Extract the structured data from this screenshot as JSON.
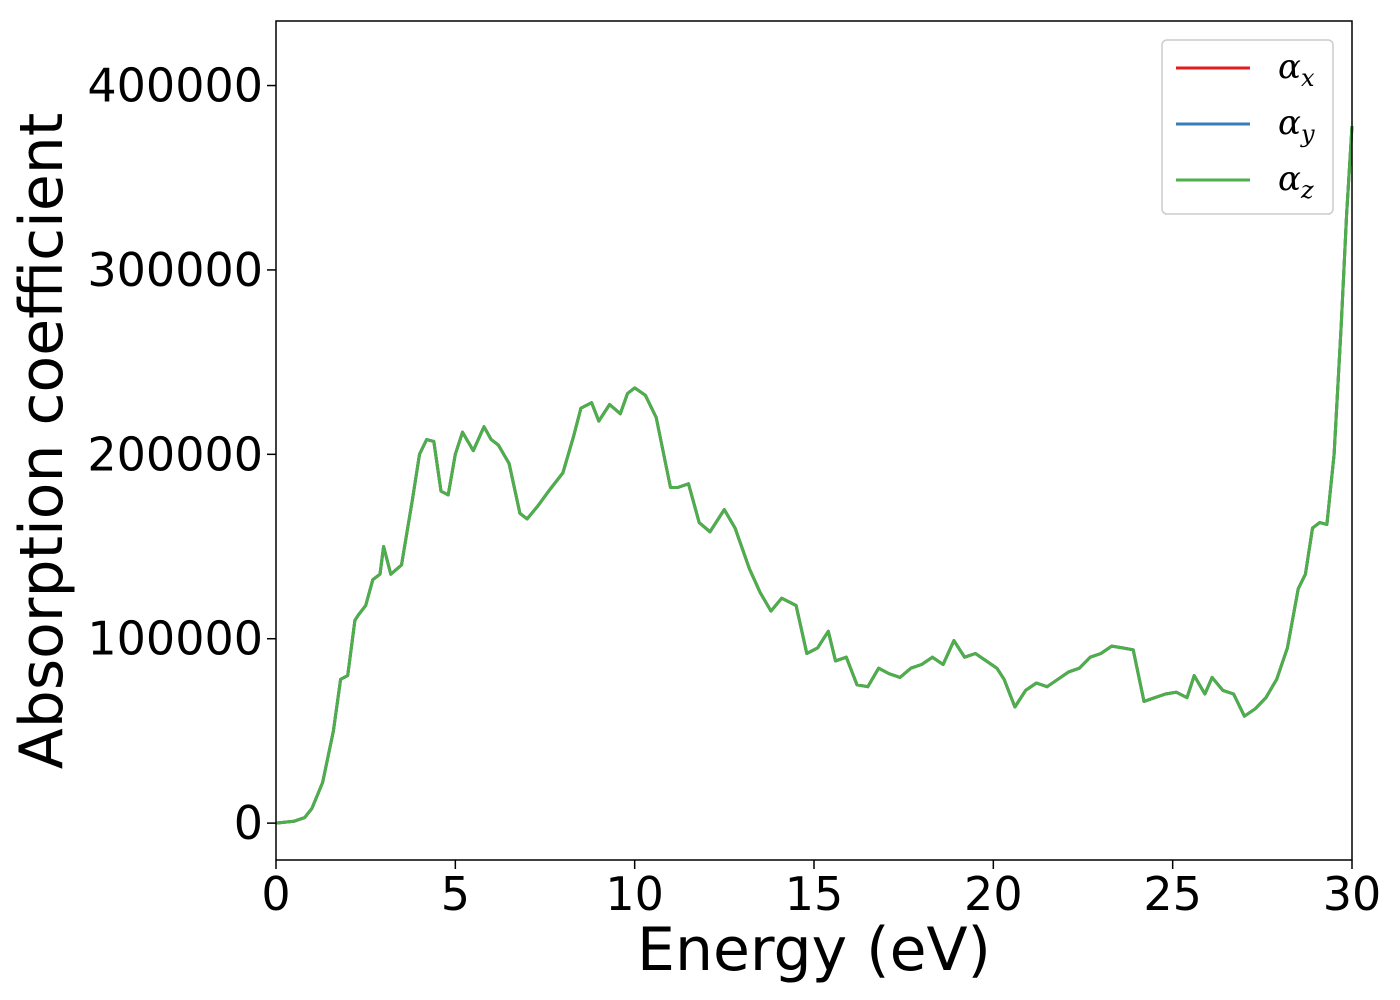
{
  "chart_data": {
    "type": "line",
    "title": "",
    "xlabel": "Energy (eV)",
    "ylabel": "Absorption coefficient",
    "xlim": [
      0,
      30
    ],
    "ylim": [
      -20000,
      435000
    ],
    "x_ticks": [
      "0",
      "5",
      "10",
      "15",
      "20",
      "25",
      "30"
    ],
    "y_ticks": [
      "0",
      "100000",
      "200000",
      "300000",
      "400000"
    ],
    "x_tick_values": [
      0,
      5,
      10,
      15,
      20,
      25,
      30
    ],
    "y_tick_values": [
      0,
      100000,
      200000,
      300000,
      400000
    ],
    "grid": false,
    "legend_position": "top-right",
    "series": [
      {
        "name": "x",
        "legend_symbol": "α",
        "legend_subscript": "x",
        "color": "#e41a1c"
      },
      {
        "name": "y",
        "legend_symbol": "α",
        "legend_subscript": "y",
        "color": "#377eb8"
      },
      {
        "name": "z",
        "legend_symbol": "α",
        "legend_subscript": "z",
        "color": "#4daf4a"
      }
    ],
    "shared_curve_note_free": true,
    "x": [
      0,
      0.5,
      0.8,
      1.0,
      1.3,
      1.6,
      1.8,
      2.0,
      2.2,
      2.3,
      2.5,
      2.7,
      2.9,
      3.0,
      3.2,
      3.5,
      3.8,
      4.0,
      4.2,
      4.4,
      4.6,
      4.8,
      5.0,
      5.2,
      5.5,
      5.8,
      6.0,
      6.2,
      6.5,
      6.8,
      7.0,
      7.3,
      7.6,
      8.0,
      8.3,
      8.5,
      8.8,
      9.0,
      9.3,
      9.6,
      9.8,
      10.0,
      10.3,
      10.6,
      11.0,
      11.2,
      11.5,
      11.8,
      12.1,
      12.5,
      12.8,
      13.2,
      13.5,
      13.8,
      14.1,
      14.5,
      14.8,
      15.1,
      15.4,
      15.6,
      15.9,
      16.2,
      16.5,
      16.8,
      17.1,
      17.4,
      17.7,
      18.0,
      18.3,
      18.6,
      18.9,
      19.2,
      19.5,
      19.8,
      20.1,
      20.3,
      20.6,
      20.9,
      21.2,
      21.5,
      21.8,
      22.1,
      22.4,
      22.7,
      23.0,
      23.3,
      23.6,
      23.9,
      24.2,
      24.5,
      24.8,
      25.1,
      25.4,
      25.6,
      25.9,
      26.1,
      26.4,
      26.7,
      27.0,
      27.3,
      27.6,
      27.9,
      28.2,
      28.5,
      28.7,
      28.9,
      29.1,
      29.3,
      29.5,
      29.7,
      29.85,
      30.0
    ],
    "y": [
      0,
      1000,
      3000,
      8000,
      22000,
      50000,
      78000,
      80000,
      110000,
      113000,
      118000,
      132000,
      135000,
      150000,
      135000,
      140000,
      175000,
      200000,
      208000,
      207000,
      180000,
      178000,
      200000,
      212000,
      202000,
      215000,
      208000,
      205000,
      195000,
      168000,
      165000,
      172000,
      180000,
      190000,
      210000,
      225000,
      228000,
      218000,
      227000,
      222000,
      233000,
      236000,
      232000,
      220000,
      182000,
      182000,
      184000,
      163000,
      158000,
      170000,
      160000,
      138000,
      125000,
      115000,
      122000,
      118000,
      92000,
      95000,
      104000,
      88000,
      90000,
      75000,
      74000,
      84000,
      81000,
      79000,
      84000,
      86000,
      90000,
      86000,
      99000,
      90000,
      92000,
      88000,
      84000,
      78000,
      63000,
      72000,
      76000,
      74000,
      78000,
      82000,
      84000,
      90000,
      92000,
      96000,
      95000,
      94000,
      66000,
      68000,
      70000,
      71000,
      68000,
      80000,
      70000,
      79000,
      72000,
      70000,
      58000,
      62000,
      68000,
      78000,
      95000,
      127000,
      135000,
      160000,
      163000,
      162000,
      200000,
      270000,
      330000,
      378000
    ]
  }
}
